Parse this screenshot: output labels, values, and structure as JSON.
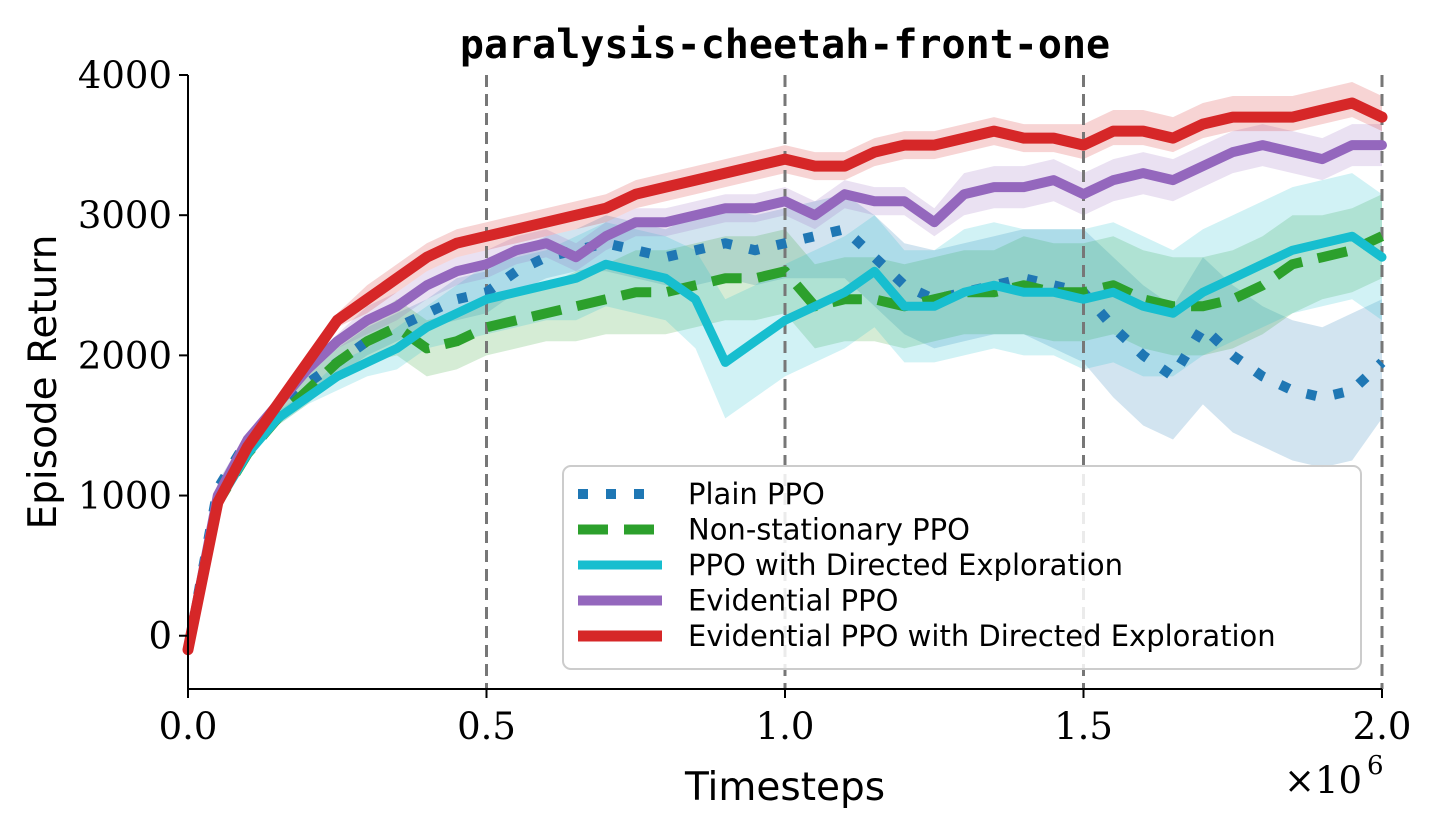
{
  "chart_data": {
    "type": "line",
    "title": "paralysis-cheetah-front-one",
    "xlabel": "Timesteps",
    "ylabel": "Episode Return",
    "x_scale_label": "×10",
    "x_scale_exponent": "6",
    "xlim": [
      0,
      2.0
    ],
    "ylim": [
      -380,
      4000
    ],
    "xticks": [
      0.0,
      0.5,
      1.0,
      1.5,
      2.0
    ],
    "xtick_labels": [
      "0.0",
      "0.5",
      "1.0",
      "1.5",
      "2.0"
    ],
    "yticks": [
      0,
      1000,
      2000,
      3000,
      4000
    ],
    "ytick_labels": [
      "0",
      "1000",
      "2000",
      "3000",
      "4000"
    ],
    "vlines": [
      0.5,
      1.0,
      1.5,
      2.0
    ],
    "grid": false,
    "legend_position": "lower-right",
    "x": [
      0.0,
      0.05,
      0.1,
      0.15,
      0.2,
      0.25,
      0.3,
      0.35,
      0.4,
      0.45,
      0.5,
      0.55,
      0.6,
      0.65,
      0.7,
      0.75,
      0.8,
      0.85,
      0.9,
      0.95,
      1.0,
      1.05,
      1.1,
      1.15,
      1.2,
      1.25,
      1.3,
      1.35,
      1.4,
      1.45,
      1.5,
      1.55,
      1.6,
      1.65,
      1.7,
      1.75,
      1.8,
      1.85,
      1.9,
      1.95,
      2.0
    ],
    "series": [
      {
        "name": "Plain PPO",
        "color": "#1f77b4",
        "style": "dotted",
        "values": [
          -100,
          1050,
          1400,
          1600,
          1800,
          1950,
          2100,
          2200,
          2300,
          2400,
          2450,
          2600,
          2700,
          2750,
          2800,
          2750,
          2700,
          2750,
          2800,
          2750,
          2800,
          2850,
          2900,
          2700,
          2500,
          2400,
          2450,
          2500,
          2550,
          2500,
          2450,
          2200,
          2000,
          1850,
          2200,
          2000,
          1850,
          1750,
          1700,
          1750,
          1950
        ],
        "lower": [
          -100,
          1000,
          1350,
          1550,
          1700,
          1850,
          2000,
          2100,
          2200,
          2250,
          2300,
          2450,
          2550,
          2600,
          2600,
          2550,
          2500,
          2500,
          2550,
          2500,
          2550,
          2550,
          2550,
          2350,
          2150,
          2050,
          2100,
          2150,
          2150,
          2050,
          1950,
          1700,
          1500,
          1400,
          1650,
          1450,
          1350,
          1250,
          1200,
          1250,
          1550
        ],
        "upper": [
          -100,
          1100,
          1450,
          1650,
          1900,
          2050,
          2200,
          2300,
          2400,
          2550,
          2600,
          2750,
          2850,
          2900,
          3000,
          2950,
          2900,
          3000,
          3050,
          3000,
          3050,
          3100,
          3150,
          3000,
          2800,
          2750,
          2800,
          2850,
          2900,
          2900,
          2900,
          2700,
          2500,
          2350,
          2700,
          2500,
          2350,
          2250,
          2200,
          2300,
          2400
        ]
      },
      {
        "name": "Non-stationary PPO",
        "color": "#2ca02c",
        "style": "dashed",
        "values": [
          -100,
          950,
          1300,
          1550,
          1750,
          1950,
          2100,
          2200,
          2050,
          2100,
          2200,
          2250,
          2300,
          2350,
          2400,
          2450,
          2450,
          2500,
          2550,
          2550,
          2600,
          2350,
          2400,
          2400,
          2350,
          2400,
          2450,
          2450,
          2500,
          2450,
          2450,
          2500,
          2400,
          2350,
          2350,
          2400,
          2500,
          2650,
          2700,
          2750,
          2850
        ],
        "lower": [
          -100,
          900,
          1250,
          1500,
          1650,
          1850,
          1950,
          2000,
          1850,
          1900,
          2000,
          2050,
          2100,
          2100,
          2150,
          2150,
          2150,
          2200,
          2250,
          2250,
          2300,
          2050,
          2100,
          2100,
          2050,
          2100,
          2150,
          2150,
          2150,
          2100,
          2100,
          2150,
          2050,
          2000,
          2000,
          2050,
          2150,
          2300,
          2400,
          2450,
          2550
        ],
        "upper": [
          -100,
          1000,
          1350,
          1600,
          1850,
          2050,
          2250,
          2400,
          2250,
          2300,
          2400,
          2450,
          2500,
          2600,
          2650,
          2750,
          2750,
          2800,
          2850,
          2850,
          2900,
          2650,
          2700,
          2700,
          2650,
          2700,
          2750,
          2750,
          2850,
          2800,
          2800,
          2850,
          2750,
          2700,
          2700,
          2750,
          2850,
          3000,
          3000,
          3050,
          3150
        ]
      },
      {
        "name": "PPO with Directed Exploration",
        "color": "#17becf",
        "style": "solid",
        "values": [
          -100,
          950,
          1300,
          1550,
          1700,
          1850,
          1950,
          2050,
          2200,
          2300,
          2400,
          2450,
          2500,
          2550,
          2650,
          2600,
          2550,
          2400,
          1950,
          2100,
          2250,
          2350,
          2450,
          2600,
          2350,
          2350,
          2450,
          2500,
          2450,
          2450,
          2400,
          2450,
          2350,
          2300,
          2450,
          2550,
          2650,
          2750,
          2800,
          2850,
          2700
        ],
        "lower": [
          -100,
          900,
          1250,
          1500,
          1650,
          1750,
          1850,
          1900,
          2050,
          2100,
          2150,
          2200,
          2250,
          2250,
          2350,
          2300,
          2250,
          2050,
          1550,
          1700,
          1850,
          1950,
          2050,
          2200,
          1950,
          1950,
          2000,
          2050,
          2000,
          2000,
          1900,
          1950,
          1850,
          1850,
          2000,
          2100,
          2200,
          2300,
          2350,
          2400,
          2250
        ],
        "upper": [
          -100,
          1000,
          1350,
          1600,
          1750,
          1950,
          2050,
          2200,
          2350,
          2500,
          2650,
          2700,
          2750,
          2850,
          2950,
          2900,
          2850,
          2750,
          2400,
          2500,
          2650,
          2750,
          2850,
          3000,
          2750,
          2750,
          2900,
          2950,
          2900,
          2900,
          2900,
          2950,
          2850,
          2750,
          2900,
          3000,
          3100,
          3200,
          3250,
          3300,
          3150
        ]
      },
      {
        "name": "Evidential PPO",
        "color": "#9467bd",
        "style": "solid",
        "values": [
          -100,
          1000,
          1400,
          1650,
          1900,
          2100,
          2250,
          2350,
          2500,
          2600,
          2650,
          2750,
          2800,
          2700,
          2850,
          2950,
          2950,
          3000,
          3050,
          3050,
          3100,
          3000,
          3150,
          3100,
          3100,
          2950,
          3150,
          3200,
          3200,
          3250,
          3150,
          3250,
          3300,
          3250,
          3350,
          3450,
          3500,
          3450,
          3400,
          3500,
          3500
        ],
        "lower": [
          -100,
          950,
          1350,
          1600,
          1850,
          2050,
          2150,
          2250,
          2400,
          2500,
          2550,
          2650,
          2700,
          2600,
          2750,
          2850,
          2850,
          2900,
          2950,
          2950,
          3000,
          2900,
          3050,
          3000,
          3000,
          2850,
          3000,
          3050,
          3050,
          3100,
          3000,
          3100,
          3150,
          3100,
          3200,
          3300,
          3350,
          3300,
          3250,
          3350,
          3350
        ],
        "upper": [
          -100,
          1050,
          1450,
          1700,
          1950,
          2150,
          2350,
          2450,
          2600,
          2700,
          2750,
          2850,
          2900,
          2800,
          2950,
          3050,
          3050,
          3100,
          3150,
          3150,
          3200,
          3100,
          3250,
          3200,
          3200,
          3050,
          3300,
          3350,
          3350,
          3400,
          3300,
          3400,
          3450,
          3400,
          3500,
          3600,
          3650,
          3600,
          3550,
          3650,
          3650
        ]
      },
      {
        "name": "Evidential PPO with Directed Exploration",
        "color": "#d62728",
        "style": "solid",
        "values": [
          -100,
          950,
          1350,
          1650,
          1950,
          2250,
          2400,
          2550,
          2700,
          2800,
          2850,
          2900,
          2950,
          3000,
          3050,
          3150,
          3200,
          3250,
          3300,
          3350,
          3400,
          3350,
          3350,
          3450,
          3500,
          3500,
          3550,
          3600,
          3550,
          3550,
          3500,
          3600,
          3600,
          3550,
          3650,
          3700,
          3700,
          3700,
          3750,
          3800,
          3700
        ],
        "lower": [
          -100,
          900,
          1300,
          1600,
          1900,
          2200,
          2300,
          2450,
          2600,
          2700,
          2750,
          2800,
          2850,
          2900,
          2950,
          3050,
          3100,
          3150,
          3200,
          3250,
          3300,
          3250,
          3250,
          3350,
          3400,
          3400,
          3450,
          3500,
          3450,
          3450,
          3400,
          3500,
          3500,
          3450,
          3550,
          3600,
          3600,
          3600,
          3650,
          3700,
          3600
        ],
        "upper": [
          -100,
          1000,
          1400,
          1700,
          2000,
          2300,
          2500,
          2650,
          2800,
          2900,
          2950,
          3000,
          3050,
          3100,
          3150,
          3250,
          3300,
          3350,
          3400,
          3450,
          3500,
          3450,
          3450,
          3550,
          3600,
          3600,
          3650,
          3700,
          3650,
          3650,
          3650,
          3750,
          3750,
          3700,
          3800,
          3850,
          3850,
          3850,
          3900,
          3950,
          3850
        ]
      }
    ]
  }
}
